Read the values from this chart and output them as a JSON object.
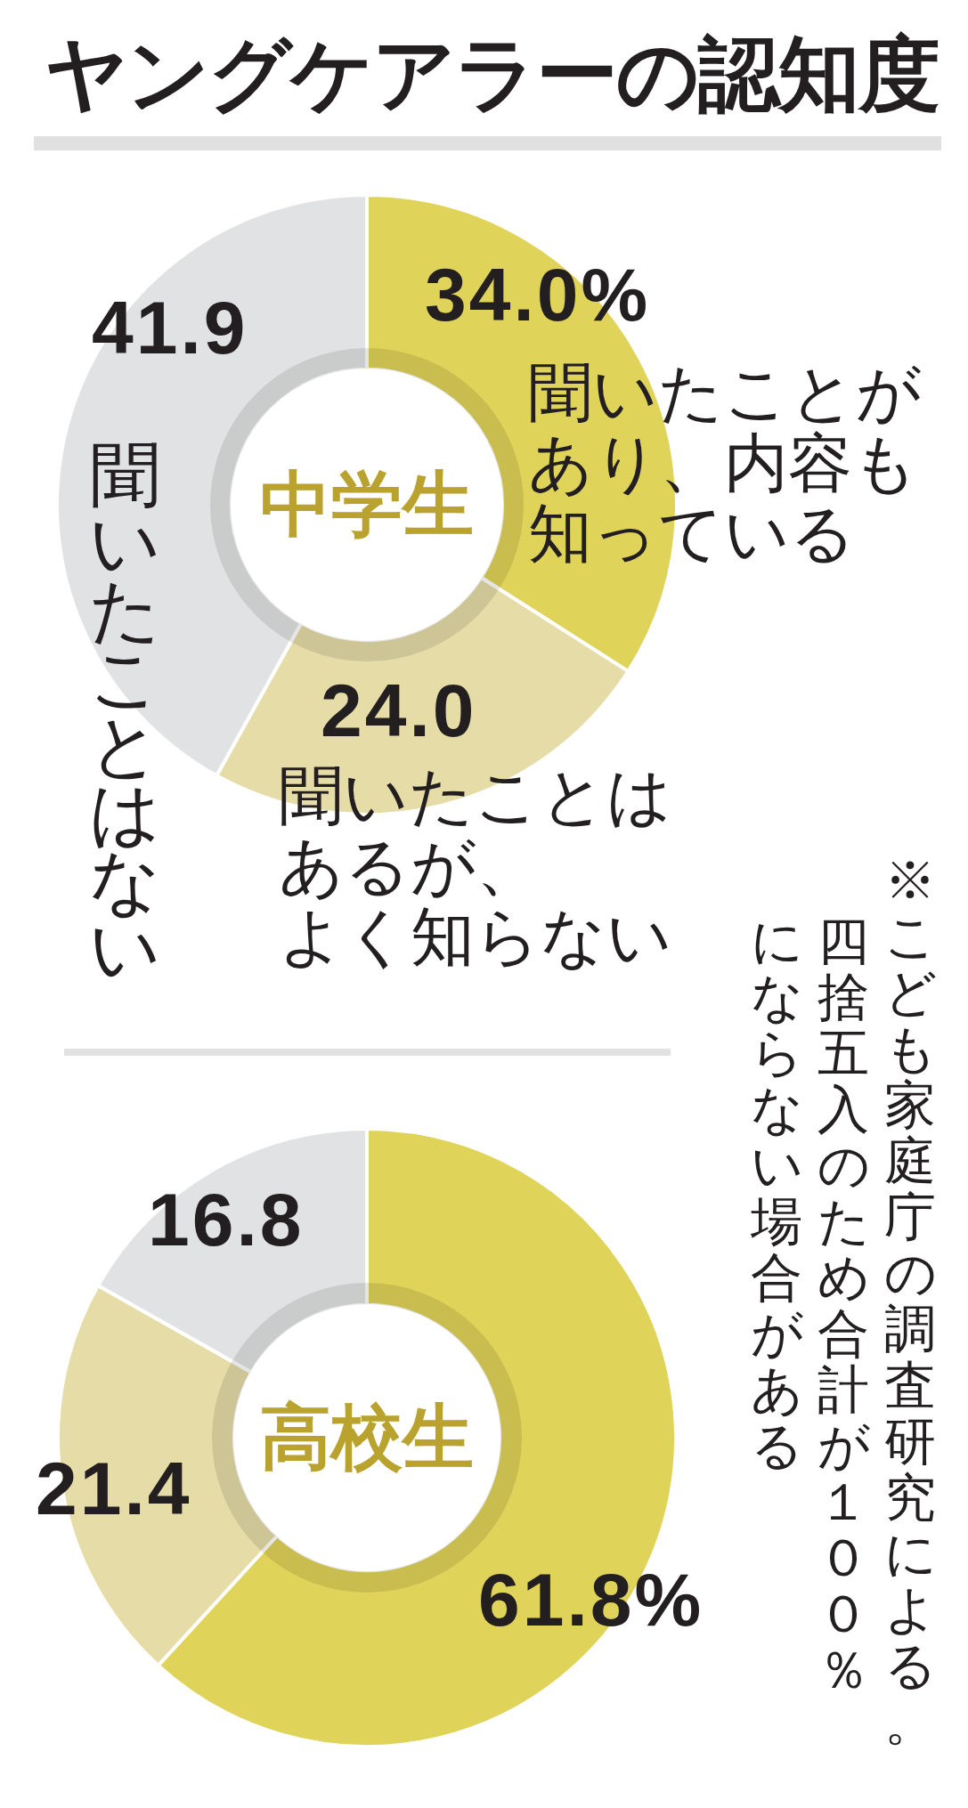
{
  "chart_data": [
    {
      "type": "donut",
      "title": "ヤングケアラーの認知度",
      "subtitle": "中学生",
      "categories": [
        "聞いたことがあり、内容も知っている",
        "聞いたことはあるが、よく知らない",
        "聞いたことはない"
      ],
      "values": [
        34.0,
        24.0,
        41.9
      ],
      "colors": [
        "#e0d35a",
        "#e6dca8",
        "#e1e2e3"
      ],
      "value_labels": [
        "34.0%",
        "24.0",
        "41.9"
      ]
    },
    {
      "type": "donut",
      "subtitle": "高校生",
      "categories": [
        null,
        null,
        null
      ],
      "values": [
        61.8,
        21.4,
        16.8
      ],
      "colors": [
        "#e0d35a",
        "#e6dca8",
        "#e1e2e3"
      ],
      "value_labels": [
        "61.8%",
        "21.4",
        "16.8"
      ],
      "annotations": [
        "※こども家庭庁の調査研究による。四捨五入のため合計が１００％にならない場合がある"
      ]
    }
  ]
}
